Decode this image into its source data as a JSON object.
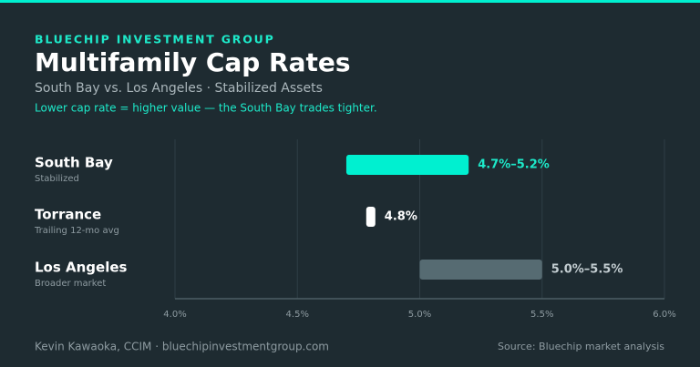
{
  "chart_data": {
    "type": "range-bar",
    "brand": "BLUECHIP INVESTMENT GROUP",
    "title": "Multifamily Cap Rates",
    "subtitle": "South Bay vs. Los Angeles · Stabilized Assets",
    "annotation": "Lower cap rate = higher value — the South Bay trades tighter.",
    "categories": [
      "South Bay",
      "Torrance",
      "Los Angeles"
    ],
    "category_notes": [
      "Stabilized",
      "Trailing 12-mo avg",
      "Broader market"
    ],
    "low": [
      4.7,
      4.8,
      5.0
    ],
    "high": [
      5.2,
      null,
      5.5
    ],
    "value_labels": [
      "4.7%–5.2%",
      "4.8%",
      "5.0%–5.5%"
    ],
    "colors": [
      "#00f0d0",
      "#ffffff",
      "#566b72"
    ],
    "label_colors": [
      "#1de9c9",
      "#ffffff",
      "#c3cdd1"
    ],
    "xlim": [
      4.0,
      6.0
    ],
    "xticks": [
      {
        "value": 4.0,
        "label": "4.0%"
      },
      {
        "value": 4.5,
        "label": "4.5%"
      },
      {
        "value": 5.0,
        "label": "5.0%"
      },
      {
        "value": 5.5,
        "label": "5.5%"
      },
      {
        "value": 6.0,
        "label": "6.0%"
      }
    ],
    "grid": true,
    "footer_left": "Kevin Kawaoka, CCIM · bluechipinvestmentgroup.com",
    "footer_right": "Source: Bluechip market analysis"
  }
}
